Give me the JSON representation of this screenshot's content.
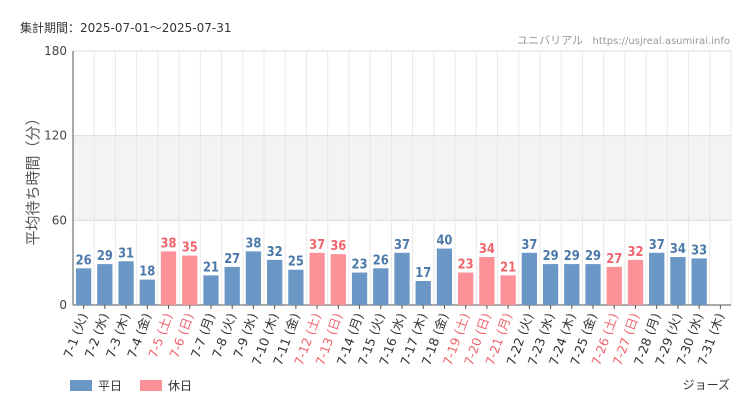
{
  "header": {
    "period_label": "集計期間：2025-07-01～2025-07-31",
    "credit_name": "ユニバリアル",
    "credit_site": "https://usjreal.asumirai.info"
  },
  "footer": {
    "attraction": "ジョーズ"
  },
  "colors": {
    "weekday": "#6b97c6",
    "holiday": "#fc9197",
    "weekday_text": "#4a78aa",
    "holiday_text": "#f0646c"
  },
  "chart_data": {
    "type": "bar",
    "ylabel": "平均待ち時間（分）",
    "xlabel": "",
    "ylim": [
      0,
      180
    ],
    "yticks": [
      0,
      60,
      120,
      180
    ],
    "grid": true,
    "shaded_band": [
      60,
      120
    ],
    "legend_position": "bottom-left",
    "legend": [
      {
        "name": "平日",
        "type": "weekday"
      },
      {
        "name": "休日",
        "type": "holiday"
      }
    ],
    "categories": [
      "7-1 (火)",
      "7-2 (水)",
      "7-3 (木)",
      "7-4 (金)",
      "7-5 (土)",
      "7-6 (日)",
      "7-7 (月)",
      "7-8 (火)",
      "7-9 (水)",
      "7-10 (木)",
      "7-11 (金)",
      "7-12 (土)",
      "7-13 (日)",
      "7-14 (月)",
      "7-15 (火)",
      "7-16 (水)",
      "7-17 (木)",
      "7-18 (金)",
      "7-19 (土)",
      "7-20 (日)",
      "7-21 (月)",
      "7-22 (火)",
      "7-23 (水)",
      "7-24 (木)",
      "7-25 (金)",
      "7-26 (土)",
      "7-27 (日)",
      "7-28 (月)",
      "7-29 (火)",
      "7-30 (水)",
      "7-31 (木)"
    ],
    "values": [
      26,
      29,
      31,
      18,
      38,
      35,
      21,
      27,
      38,
      32,
      25,
      37,
      36,
      23,
      26,
      37,
      17,
      40,
      23,
      34,
      21,
      37,
      29,
      29,
      29,
      27,
      32,
      37,
      34,
      33,
      null
    ],
    "day_types": [
      "weekday",
      "weekday",
      "weekday",
      "weekday",
      "holiday",
      "holiday",
      "weekday",
      "weekday",
      "weekday",
      "weekday",
      "weekday",
      "holiday",
      "holiday",
      "weekday",
      "weekday",
      "weekday",
      "weekday",
      "weekday",
      "holiday",
      "holiday",
      "holiday",
      "weekday",
      "weekday",
      "weekday",
      "weekday",
      "holiday",
      "holiday",
      "weekday",
      "weekday",
      "weekday",
      "weekday"
    ]
  }
}
